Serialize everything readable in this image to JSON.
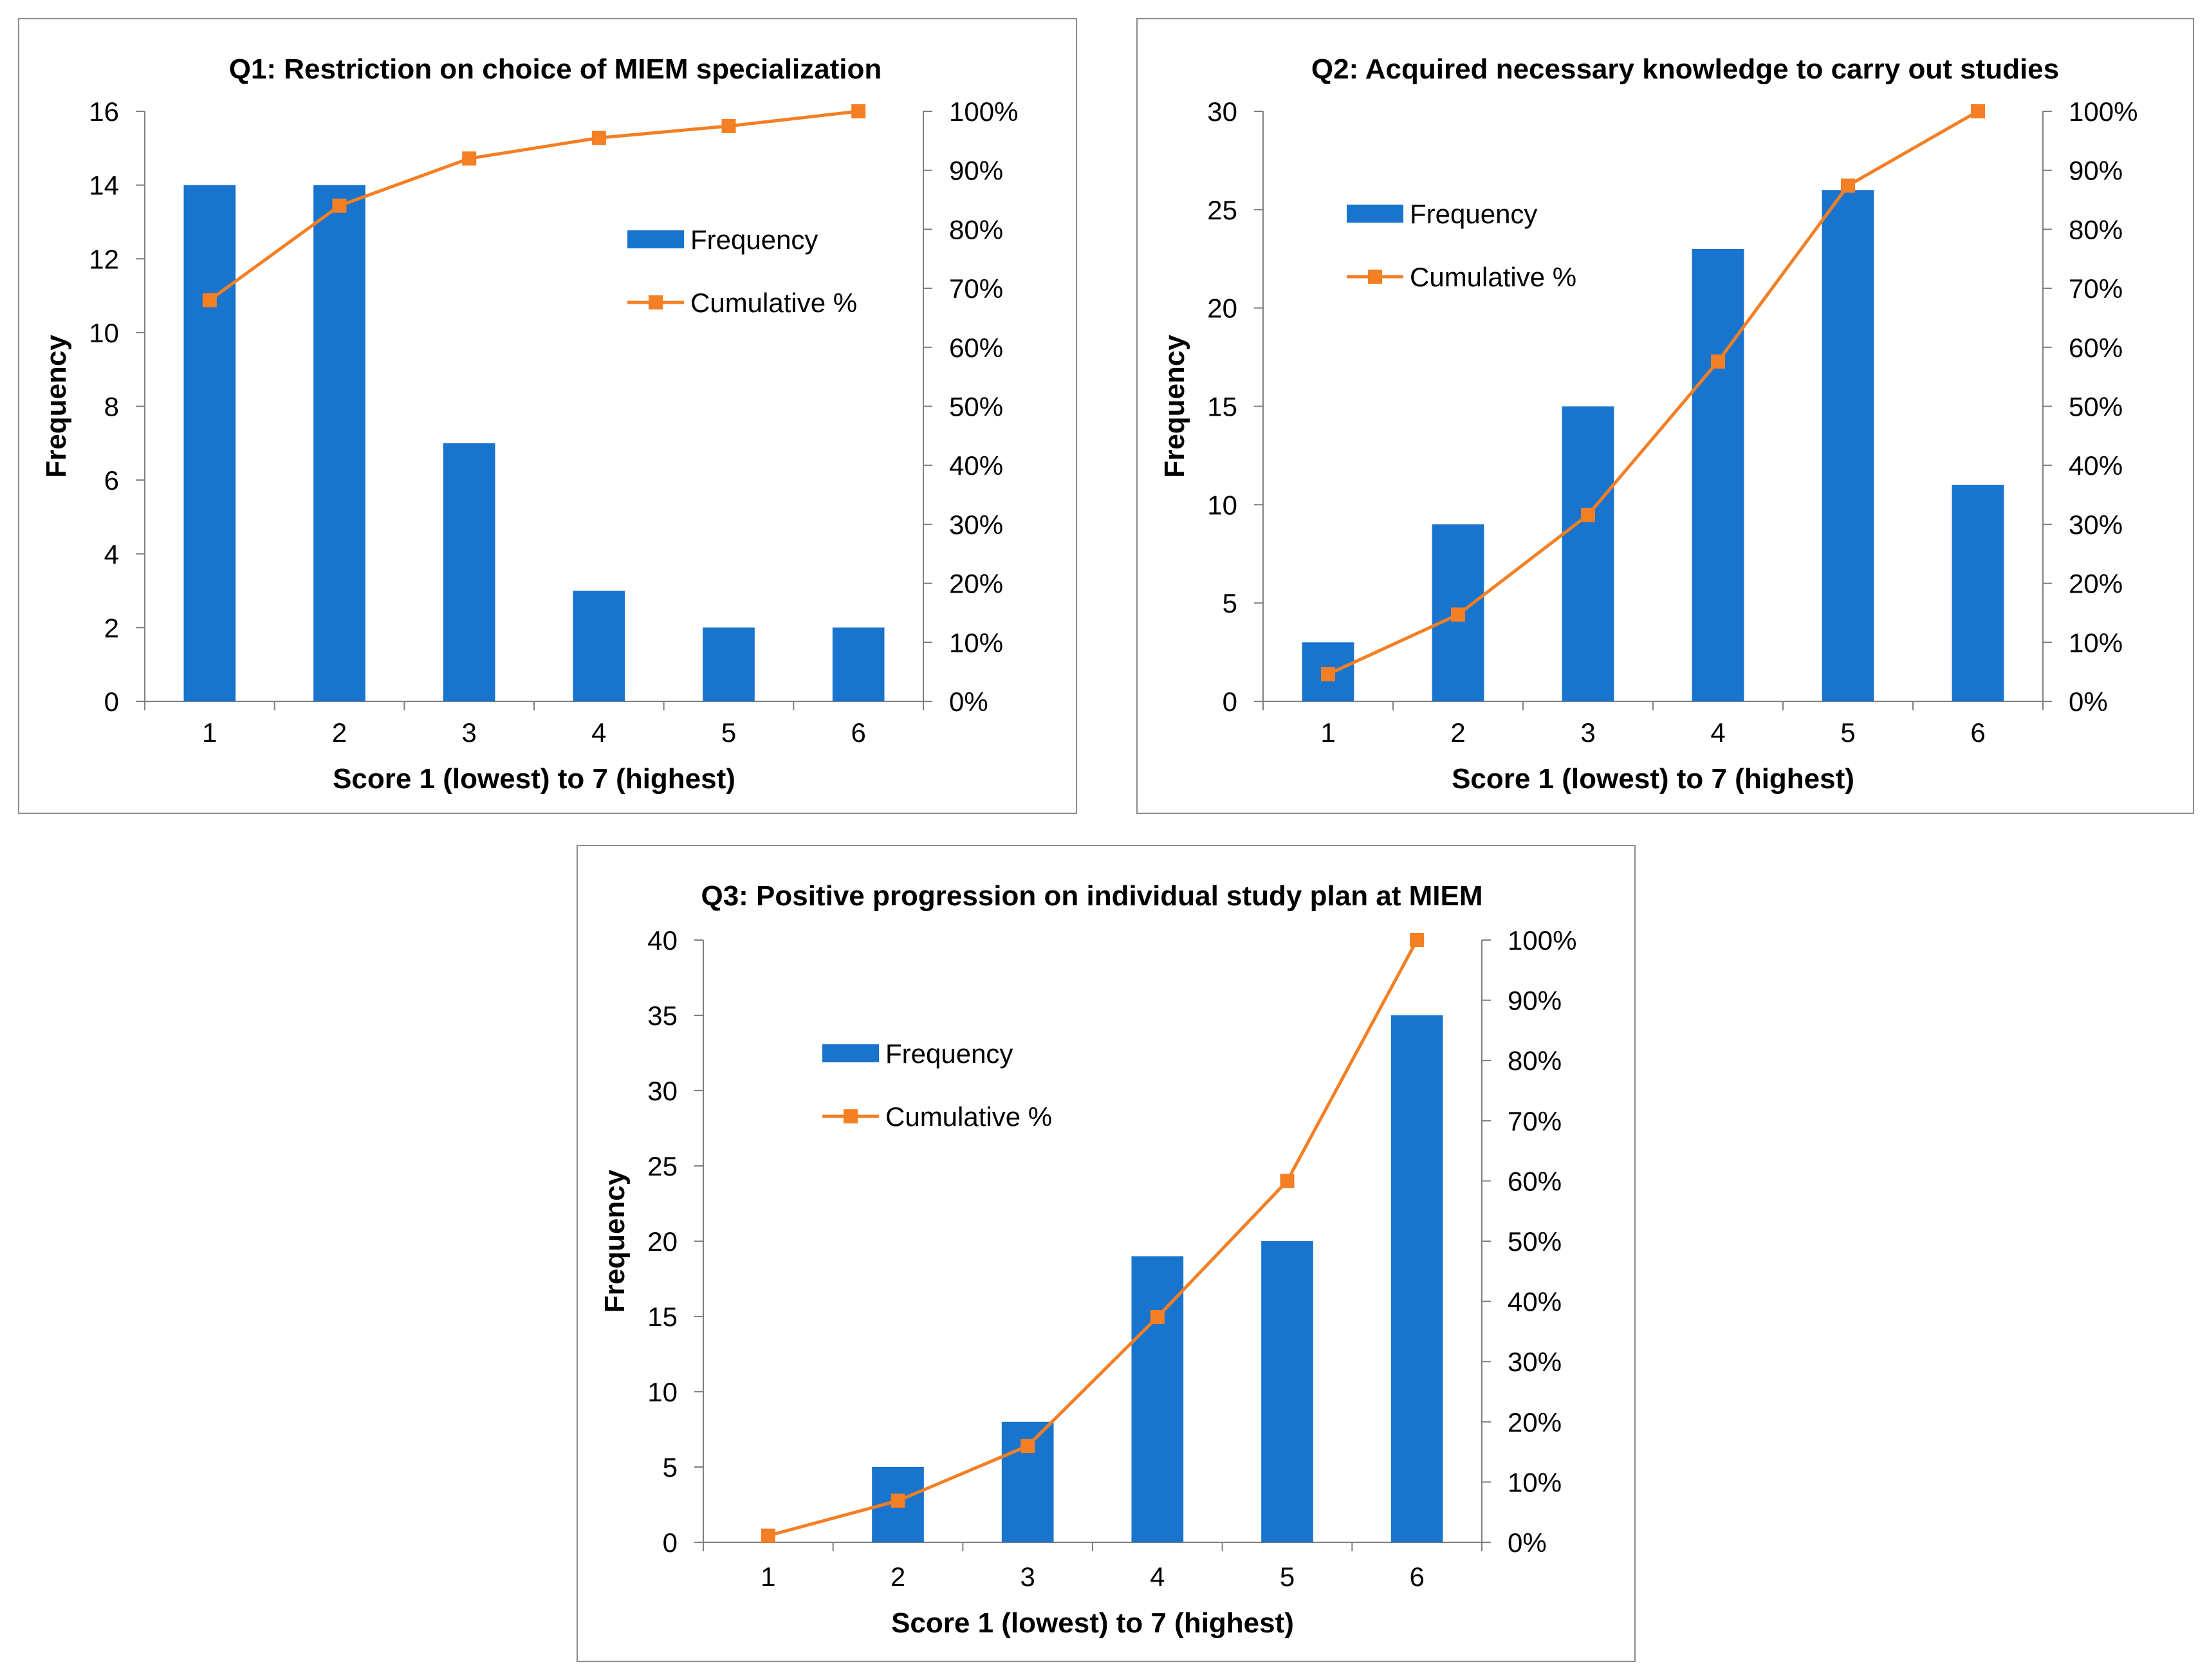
{
  "colors": {
    "bar": "#1874CD",
    "line": "#F47F24",
    "axis": "#7F7F7F",
    "border": "#8C8C8C"
  },
  "legend": {
    "frequency": "Frequency",
    "cumulative": "Cumulative %"
  },
  "chart_data": [
    {
      "type": "bar",
      "title": "Q1: Restriction on choice of MIEM specialization",
      "xlabel": "Score 1 (lowest) to 7 (highest)",
      "ylabel": "Frequency",
      "categories": [
        "1",
        "2",
        "3",
        "4",
        "5",
        "6"
      ],
      "ylim": [
        0,
        16
      ],
      "yticks": [
        "0",
        "2",
        "4",
        "6",
        "8",
        "10",
        "12",
        "14",
        "16"
      ],
      "y2lim": [
        0,
        100
      ],
      "y2ticks": [
        "0%",
        "10%",
        "20%",
        "30%",
        "40%",
        "50%",
        "60%",
        "70%",
        "80%",
        "90%",
        "100%"
      ],
      "legend_position": "top-right",
      "series": [
        {
          "name": "Frequency",
          "type": "bar",
          "axis": "left",
          "values": [
            14,
            14,
            7,
            3,
            2,
            2
          ]
        },
        {
          "name": "Cumulative %",
          "type": "line",
          "axis": "right",
          "values": [
            68,
            84,
            92,
            95.5,
            97.5,
            100
          ]
        }
      ]
    },
    {
      "type": "bar",
      "title": "Q2: Acquired necessary knowledge to carry out studies",
      "xlabel": "Score 1 (lowest) to 7 (highest)",
      "ylabel": "Frequency",
      "categories": [
        "1",
        "2",
        "3",
        "4",
        "5",
        "6"
      ],
      "ylim": [
        0,
        30
      ],
      "yticks": [
        "0",
        "5",
        "10",
        "15",
        "20",
        "25",
        "30"
      ],
      "y2lim": [
        0,
        100
      ],
      "y2ticks": [
        "0%",
        "10%",
        "20%",
        "30%",
        "40%",
        "50%",
        "60%",
        "70%",
        "80%",
        "90%",
        "100%"
      ],
      "legend_position": "top-left",
      "series": [
        {
          "name": "Frequency",
          "type": "bar",
          "axis": "left",
          "values": [
            3,
            9,
            15,
            23,
            26,
            11
          ]
        },
        {
          "name": "Cumulative %",
          "type": "line",
          "axis": "right",
          "values": [
            4.6,
            14.7,
            31.6,
            57.6,
            87.4,
            100
          ]
        }
      ]
    },
    {
      "type": "bar",
      "title": "Q3: Positive progression on individual study plan at MIEM",
      "xlabel": "Score 1 (lowest) to 7 (highest)",
      "ylabel": "Frequency",
      "categories": [
        "1",
        "2",
        "3",
        "4",
        "5",
        "6"
      ],
      "ylim": [
        0,
        40
      ],
      "yticks": [
        "0",
        "5",
        "10",
        "15",
        "20",
        "25",
        "30",
        "35",
        "40"
      ],
      "y2lim": [
        0,
        100
      ],
      "y2ticks": [
        "0%",
        "10%",
        "20%",
        "30%",
        "40%",
        "50%",
        "60%",
        "70%",
        "80%",
        "90%",
        "100%"
      ],
      "legend_position": "top-left",
      "series": [
        {
          "name": "Frequency",
          "type": "bar",
          "axis": "left",
          "values": [
            0,
            5,
            8,
            19,
            20,
            35
          ]
        },
        {
          "name": "Cumulative %",
          "type": "line",
          "axis": "right",
          "values": [
            1.1,
            6.9,
            16,
            37.4,
            60,
            100
          ]
        }
      ]
    }
  ]
}
